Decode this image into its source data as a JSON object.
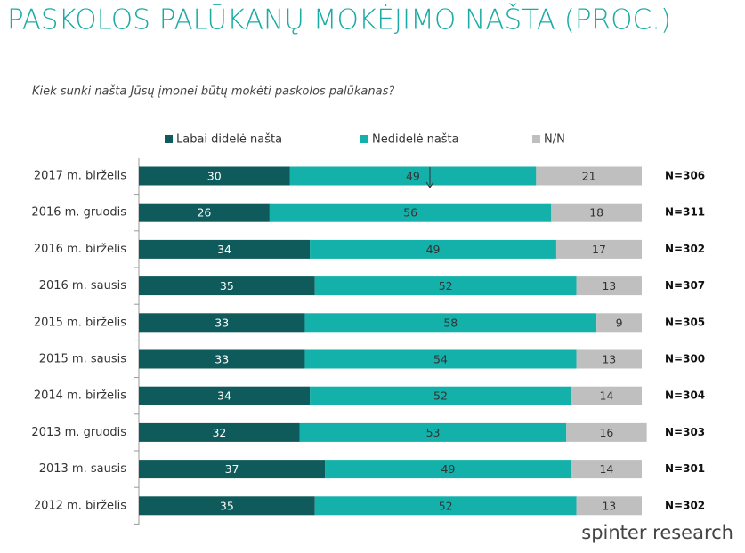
{
  "chart_data": {
    "type": "stacked-bar-horizontal",
    "title": "PASKOLOS PALŪKANŲ MOKĖJIMO NAŠTA (PROC.)",
    "subtitle": "Kiek sunki našta Jūsų įmonei būtų mokėti paskolos palūkanas?",
    "source": "spinter research",
    "categories": [
      "2017 m. birželis",
      "2016 m. gruodis",
      "2016 m. birželis",
      "2016 m. sausis",
      "2015 m. birželis",
      "2015 m. sausis",
      "2014 m. birželis",
      "2013 m. gruodis",
      "2013 m. sausis",
      "2012 m. birželis"
    ],
    "series": [
      {
        "name": "Labai didelė našta",
        "color": "#0f5a5a",
        "label_color": "#ffffff",
        "values": [
          30,
          26,
          34,
          35,
          33,
          33,
          34,
          32,
          37,
          35
        ]
      },
      {
        "name": "Nedidelė našta",
        "color": "#14b0aa",
        "label_color": "#333333",
        "values": [
          49,
          56,
          49,
          52,
          58,
          54,
          52,
          53,
          49,
          52
        ]
      },
      {
        "name": "N/N",
        "color": "#bfbfbf",
        "label_color": "#333333",
        "values": [
          21,
          18,
          17,
          13,
          9,
          13,
          14,
          16,
          14,
          13
        ]
      }
    ],
    "n_labels": [
      "N=306",
      "N=311",
      "N=302",
      "N=307",
      "N=305",
      "N=300",
      "N=304",
      "N=303",
      "N=301",
      "N=302"
    ],
    "xlim": [
      0,
      100
    ]
  }
}
